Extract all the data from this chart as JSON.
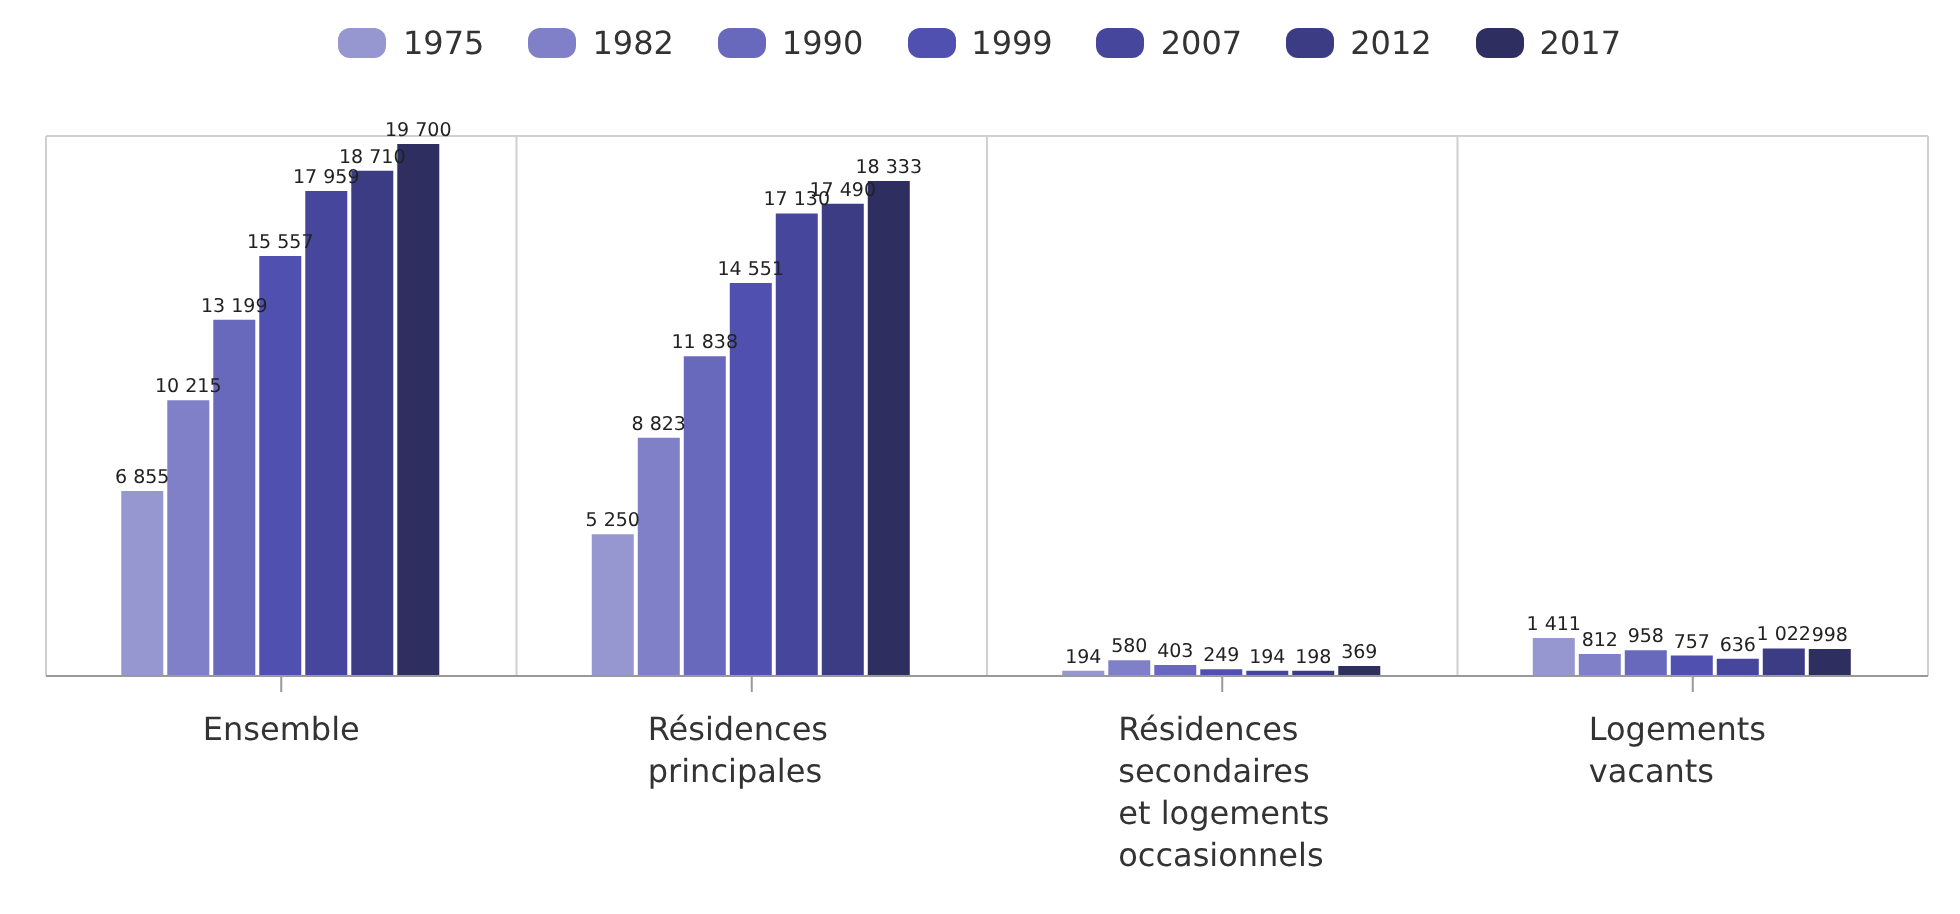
{
  "chart_data": {
    "type": "bar",
    "categories": [
      "Ensemble",
      "Résidences principales",
      "Résidences secondaires et logements occasionnels",
      "Logements vacants"
    ],
    "series": [
      {
        "name": "1975",
        "color": "#9696d0",
        "values": [
          6855,
          5250,
          194,
          1411
        ],
        "value_labels": [
          "6 855",
          "5 250",
          "194",
          "1 411"
        ]
      },
      {
        "name": "1982",
        "color": "#8080c8",
        "values": [
          10215,
          8823,
          580,
          812
        ],
        "value_labels": [
          "10 215",
          "8 823",
          "580",
          "812"
        ]
      },
      {
        "name": "1990",
        "color": "#6868bc",
        "values": [
          13199,
          11838,
          403,
          958
        ],
        "value_labels": [
          "13 199",
          "11 838",
          "403",
          "958"
        ]
      },
      {
        "name": "1999",
        "color": "#5050b0",
        "values": [
          15557,
          14551,
          249,
          757
        ],
        "value_labels": [
          "15 557",
          "14 551",
          "249",
          "757"
        ]
      },
      {
        "name": "2007",
        "color": "#46469c",
        "values": [
          17959,
          17130,
          194,
          636
        ],
        "value_labels": [
          "17 959",
          "17 130",
          "194",
          "636"
        ]
      },
      {
        "name": "2012",
        "color": "#3c3c84",
        "values": [
          18710,
          17490,
          198,
          1022
        ],
        "value_labels": [
          "18 710",
          "17 490",
          "198",
          "1 022"
        ]
      },
      {
        "name": "2017",
        "color": "#2e2e60",
        "values": [
          19700,
          18333,
          369,
          998
        ],
        "value_labels": [
          "19 700",
          "18 333",
          "369",
          "998"
        ]
      }
    ],
    "tick_labels": "x",
    "grid": true,
    "legend": "top"
  }
}
